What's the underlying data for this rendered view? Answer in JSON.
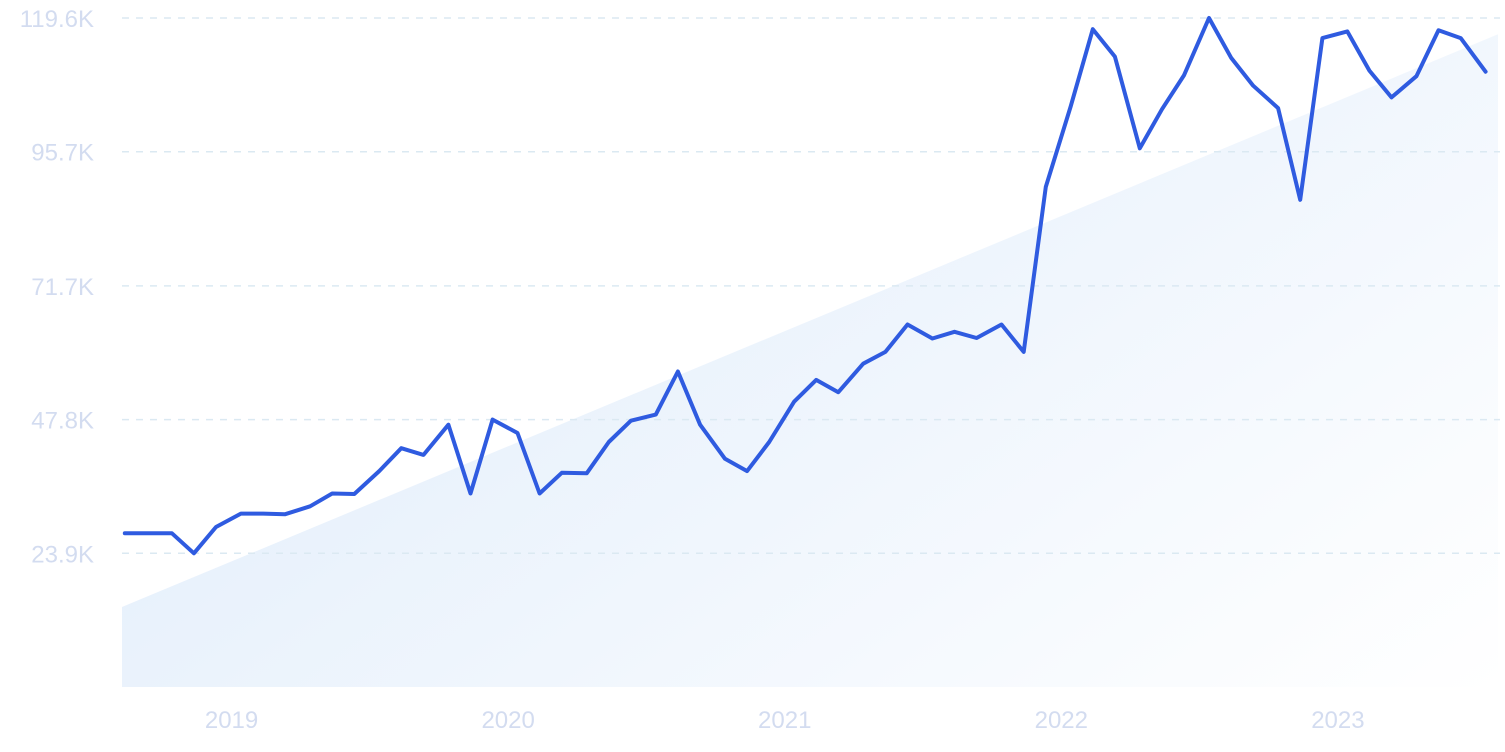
{
  "chart_data": {
    "type": "line",
    "title": "",
    "xlabel": "",
    "ylabel": "",
    "x_tick_labels": [
      "2019",
      "2020",
      "2021",
      "2022",
      "2023"
    ],
    "x_tick_values": [
      2019.0,
      2020.0,
      2021.0,
      2022.0,
      2023.0
    ],
    "y_tick_labels": [
      "23.9K",
      "47.8K",
      "71.7K",
      "95.7K",
      "119.6K"
    ],
    "y_tick_values": [
      23900,
      47800,
      71700,
      95700,
      119600
    ],
    "xlim": [
      2018.64,
      2023.615
    ],
    "ylim": [
      0,
      119600
    ],
    "grid": true,
    "series": [
      {
        "color": "#2f5be0",
        "points": [
          [
            2018.65,
            27500
          ],
          [
            2018.73,
            27500
          ],
          [
            2018.82,
            27500
          ],
          [
            2018.9,
            23900
          ],
          [
            2018.98,
            28600
          ],
          [
            2019.07,
            31000
          ],
          [
            2019.15,
            31000
          ],
          [
            2019.23,
            30900
          ],
          [
            2019.32,
            32300
          ],
          [
            2019.4,
            34600
          ],
          [
            2019.48,
            34500
          ],
          [
            2019.57,
            38600
          ],
          [
            2019.65,
            42700
          ],
          [
            2019.73,
            41500
          ],
          [
            2019.82,
            46900
          ],
          [
            2019.9,
            34600
          ],
          [
            2019.98,
            47800
          ],
          [
            2020.07,
            45400
          ],
          [
            2020.15,
            34600
          ],
          [
            2020.23,
            38300
          ],
          [
            2020.32,
            38200
          ],
          [
            2020.4,
            43800
          ],
          [
            2020.48,
            47600
          ],
          [
            2020.57,
            48700
          ],
          [
            2020.65,
            56400
          ],
          [
            2020.73,
            46900
          ],
          [
            2020.82,
            40800
          ],
          [
            2020.9,
            38600
          ],
          [
            2020.98,
            43800
          ],
          [
            2021.07,
            51000
          ],
          [
            2021.15,
            54900
          ],
          [
            2021.23,
            52700
          ],
          [
            2021.32,
            57800
          ],
          [
            2021.4,
            59900
          ],
          [
            2021.48,
            64800
          ],
          [
            2021.57,
            62300
          ],
          [
            2021.65,
            63500
          ],
          [
            2021.73,
            62400
          ],
          [
            2021.82,
            64800
          ],
          [
            2021.9,
            59900
          ],
          [
            2021.98,
            89400
          ],
          [
            2022.07,
            103800
          ],
          [
            2022.15,
            117600
          ],
          [
            2022.23,
            112700
          ],
          [
            2022.32,
            96300
          ],
          [
            2022.4,
            103300
          ],
          [
            2022.48,
            109400
          ],
          [
            2022.57,
            119600
          ],
          [
            2022.65,
            112500
          ],
          [
            2022.73,
            107500
          ],
          [
            2022.82,
            103500
          ],
          [
            2022.9,
            87100
          ],
          [
            2022.98,
            116000
          ],
          [
            2023.07,
            117200
          ],
          [
            2023.15,
            110200
          ],
          [
            2023.23,
            105400
          ],
          [
            2023.32,
            109200
          ],
          [
            2023.4,
            117400
          ],
          [
            2023.48,
            116000
          ],
          [
            2023.57,
            110000
          ]
        ]
      }
    ],
    "trend": {
      "color": "#e3eefb",
      "start": [
        2018.64,
        14300
      ],
      "end": [
        2023.615,
        116700
      ]
    }
  }
}
